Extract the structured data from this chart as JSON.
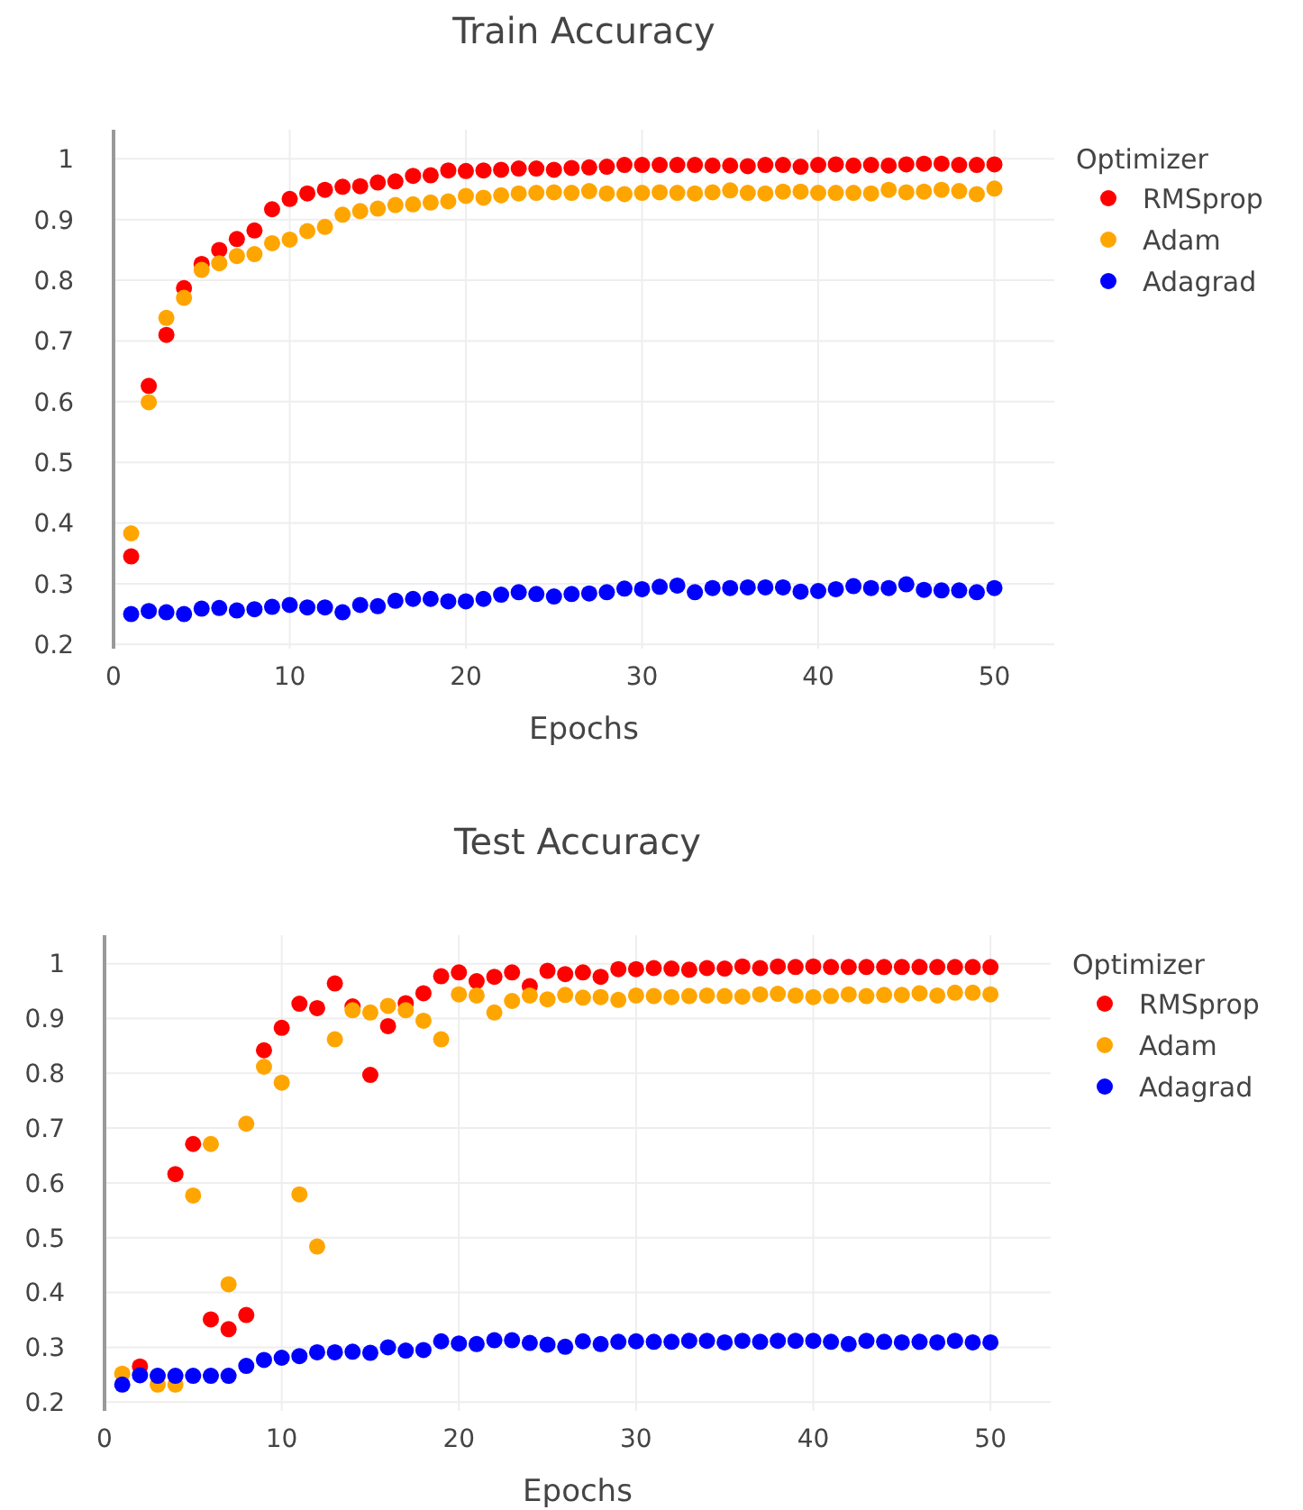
{
  "chart_data": [
    {
      "type": "scatter",
      "title": "Train Accuracy",
      "xlabel": "Epochs",
      "legend_title": "Optimizer",
      "x": [
        1,
        2,
        3,
        4,
        5,
        6,
        7,
        8,
        9,
        10,
        11,
        12,
        13,
        14,
        15,
        16,
        17,
        18,
        19,
        20,
        21,
        22,
        23,
        24,
        25,
        26,
        27,
        28,
        29,
        30,
        31,
        32,
        33,
        34,
        35,
        36,
        37,
        38,
        39,
        40,
        41,
        42,
        43,
        44,
        45,
        46,
        47,
        48,
        49,
        50
      ],
      "series": [
        {
          "name": "RMSprop",
          "color": "#ff0000",
          "values": [
            0.345,
            0.626,
            0.71,
            0.787,
            0.827,
            0.85,
            0.868,
            0.882,
            0.917,
            0.934,
            0.943,
            0.949,
            0.954,
            0.955,
            0.961,
            0.963,
            0.972,
            0.973,
            0.981,
            0.98,
            0.981,
            0.982,
            0.984,
            0.984,
            0.982,
            0.985,
            0.986,
            0.987,
            0.99,
            0.99,
            0.99,
            0.99,
            0.99,
            0.989,
            0.989,
            0.988,
            0.99,
            0.99,
            0.987,
            0.99,
            0.991,
            0.989,
            0.99,
            0.989,
            0.991,
            0.992,
            0.992,
            0.99,
            0.99,
            0.991
          ]
        },
        {
          "name": "Adam",
          "color": "#ffa500",
          "values": [
            0.383,
            0.599,
            0.738,
            0.771,
            0.817,
            0.828,
            0.84,
            0.843,
            0.861,
            0.867,
            0.881,
            0.888,
            0.908,
            0.914,
            0.918,
            0.924,
            0.925,
            0.928,
            0.93,
            0.939,
            0.936,
            0.94,
            0.943,
            0.944,
            0.945,
            0.944,
            0.947,
            0.943,
            0.942,
            0.944,
            0.945,
            0.944,
            0.943,
            0.945,
            0.948,
            0.944,
            0.943,
            0.946,
            0.946,
            0.944,
            0.944,
            0.944,
            0.943,
            0.949,
            0.945,
            0.946,
            0.949,
            0.947,
            0.942,
            0.951
          ]
        },
        {
          "name": "Adagrad",
          "color": "#0000ff",
          "values": [
            0.25,
            0.255,
            0.253,
            0.25,
            0.259,
            0.26,
            0.256,
            0.258,
            0.262,
            0.265,
            0.261,
            0.261,
            0.253,
            0.265,
            0.263,
            0.272,
            0.275,
            0.275,
            0.271,
            0.271,
            0.275,
            0.282,
            0.286,
            0.283,
            0.279,
            0.283,
            0.284,
            0.286,
            0.292,
            0.291,
            0.295,
            0.297,
            0.286,
            0.293,
            0.293,
            0.294,
            0.294,
            0.294,
            0.287,
            0.288,
            0.291,
            0.296,
            0.293,
            0.293,
            0.299,
            0.29,
            0.289,
            0.289,
            0.286,
            0.293
          ]
        }
      ],
      "xlim": [
        0,
        53.4
      ],
      "xticks": [
        0,
        10,
        20,
        30,
        40,
        50
      ],
      "ylim": [
        0.193,
        1.048
      ],
      "yticks": [
        0.2,
        0.3,
        0.4,
        0.5,
        0.6,
        0.7,
        0.8,
        0.9,
        1
      ],
      "grid": true,
      "legend": "top right",
      "marker": "circle"
    },
    {
      "type": "scatter",
      "title": "Test Accuracy",
      "xlabel": "Epochs",
      "legend_title": "Optimizer",
      "x": [
        1,
        2,
        3,
        4,
        5,
        6,
        7,
        8,
        9,
        10,
        11,
        12,
        13,
        14,
        15,
        16,
        17,
        18,
        19,
        20,
        21,
        22,
        23,
        24,
        25,
        26,
        27,
        28,
        29,
        30,
        31,
        32,
        33,
        34,
        35,
        36,
        37,
        38,
        39,
        40,
        41,
        42,
        43,
        44,
        45,
        46,
        47,
        48,
        49,
        50
      ],
      "series": [
        {
          "name": "RMSprop",
          "color": "#ff0000",
          "values": [
            null,
            0.265,
            null,
            0.616,
            0.671,
            0.351,
            0.333,
            0.359,
            0.842,
            0.883,
            0.927,
            0.919,
            0.964,
            0.922,
            0.797,
            0.886,
            0.928,
            0.946,
            0.977,
            0.984,
            0.968,
            0.976,
            0.984,
            0.959,
            0.987,
            0.981,
            0.984,
            0.976,
            0.99,
            0.99,
            0.992,
            0.991,
            0.989,
            0.992,
            0.991,
            0.995,
            0.992,
            0.995,
            0.994,
            0.995,
            0.994,
            0.994,
            0.994,
            0.994,
            0.994,
            0.994,
            0.994,
            0.994,
            0.994,
            0.994
          ]
        },
        {
          "name": "Adam",
          "color": "#ffa500",
          "values": [
            0.252,
            null,
            0.232,
            0.232,
            0.577,
            0.671,
            0.415,
            0.708,
            0.812,
            0.783,
            0.579,
            0.484,
            0.862,
            0.915,
            0.911,
            0.923,
            0.915,
            0.896,
            0.862,
            0.944,
            0.942,
            0.911,
            0.932,
            0.942,
            0.935,
            0.943,
            0.938,
            0.939,
            0.934,
            0.942,
            0.941,
            0.939,
            0.941,
            0.942,
            0.941,
            0.94,
            0.944,
            0.945,
            0.942,
            0.939,
            0.941,
            0.944,
            0.941,
            0.943,
            0.943,
            0.946,
            0.942,
            0.947,
            0.947,
            0.944
          ]
        },
        {
          "name": "Adagrad",
          "color": "#0000ff",
          "values": [
            0.232,
            0.249,
            0.248,
            0.248,
            0.248,
            0.248,
            0.248,
            0.266,
            0.277,
            0.281,
            0.284,
            0.291,
            0.291,
            0.292,
            0.29,
            0.3,
            0.294,
            0.295,
            0.311,
            0.307,
            0.306,
            0.313,
            0.313,
            0.308,
            0.305,
            0.301,
            0.311,
            0.306,
            0.31,
            0.311,
            0.31,
            0.31,
            0.312,
            0.312,
            0.309,
            0.312,
            0.31,
            0.312,
            0.312,
            0.312,
            0.31,
            0.306,
            0.312,
            0.31,
            0.309,
            0.31,
            0.309,
            0.312,
            0.309,
            0.309
          ]
        }
      ],
      "xlim": [
        0,
        53.4
      ],
      "xticks": [
        0,
        10,
        20,
        30,
        40,
        50
      ],
      "ylim": [
        0.184,
        1.052
      ],
      "yticks": [
        0.2,
        0.3,
        0.4,
        0.5,
        0.6,
        0.7,
        0.8,
        0.9,
        1
      ],
      "grid": true,
      "legend": "top right",
      "marker": "circle"
    }
  ]
}
